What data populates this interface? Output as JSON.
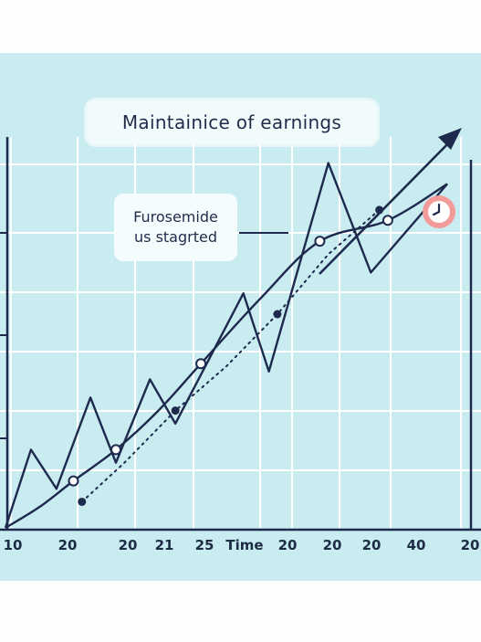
{
  "chart_data": {
    "type": "line",
    "title": "Maintainice of earnings",
    "annotation": {
      "lines": [
        "Furosemide",
        "us stagrted"
      ]
    },
    "xlabel": "",
    "ylabel": "",
    "x_ticks": [
      "10",
      "20",
      "20",
      "21",
      "25",
      "Time",
      "20",
      "20",
      "20",
      "40",
      "20"
    ],
    "grid": true,
    "series": [
      {
        "style": "zigzag-solid",
        "points": [
          [
            10,
            0
          ],
          [
            13,
            30
          ],
          [
            16,
            15
          ],
          [
            20,
            50
          ],
          [
            23,
            25
          ],
          [
            27,
            57
          ],
          [
            30,
            40
          ],
          [
            38,
            90
          ],
          [
            41,
            60
          ],
          [
            48,
            140
          ],
          [
            53,
            98
          ],
          [
            62,
            132
          ]
        ]
      },
      {
        "style": "smooth-solid",
        "points": [
          [
            10,
            0
          ],
          [
            14,
            8
          ],
          [
            18,
            18
          ],
          [
            23,
            30
          ],
          [
            28,
            45
          ],
          [
            33,
            63
          ],
          [
            40,
            88
          ],
          [
            47,
            110
          ],
          [
            55,
            118
          ],
          [
            62,
            132
          ]
        ]
      },
      {
        "style": "dotted",
        "points": [
          [
            19,
            10
          ],
          [
            24,
            25
          ],
          [
            30,
            45
          ],
          [
            36,
            62
          ],
          [
            42,
            82
          ],
          [
            48,
            105
          ],
          [
            54,
            122
          ]
        ]
      }
    ],
    "trend_arrow": true,
    "clock_icon": "clock-icon",
    "colors": {
      "background": "#c9ecf0",
      "grid": "#ffffff",
      "line": "#1e2a4d",
      "clock": "#f39b9b"
    }
  }
}
